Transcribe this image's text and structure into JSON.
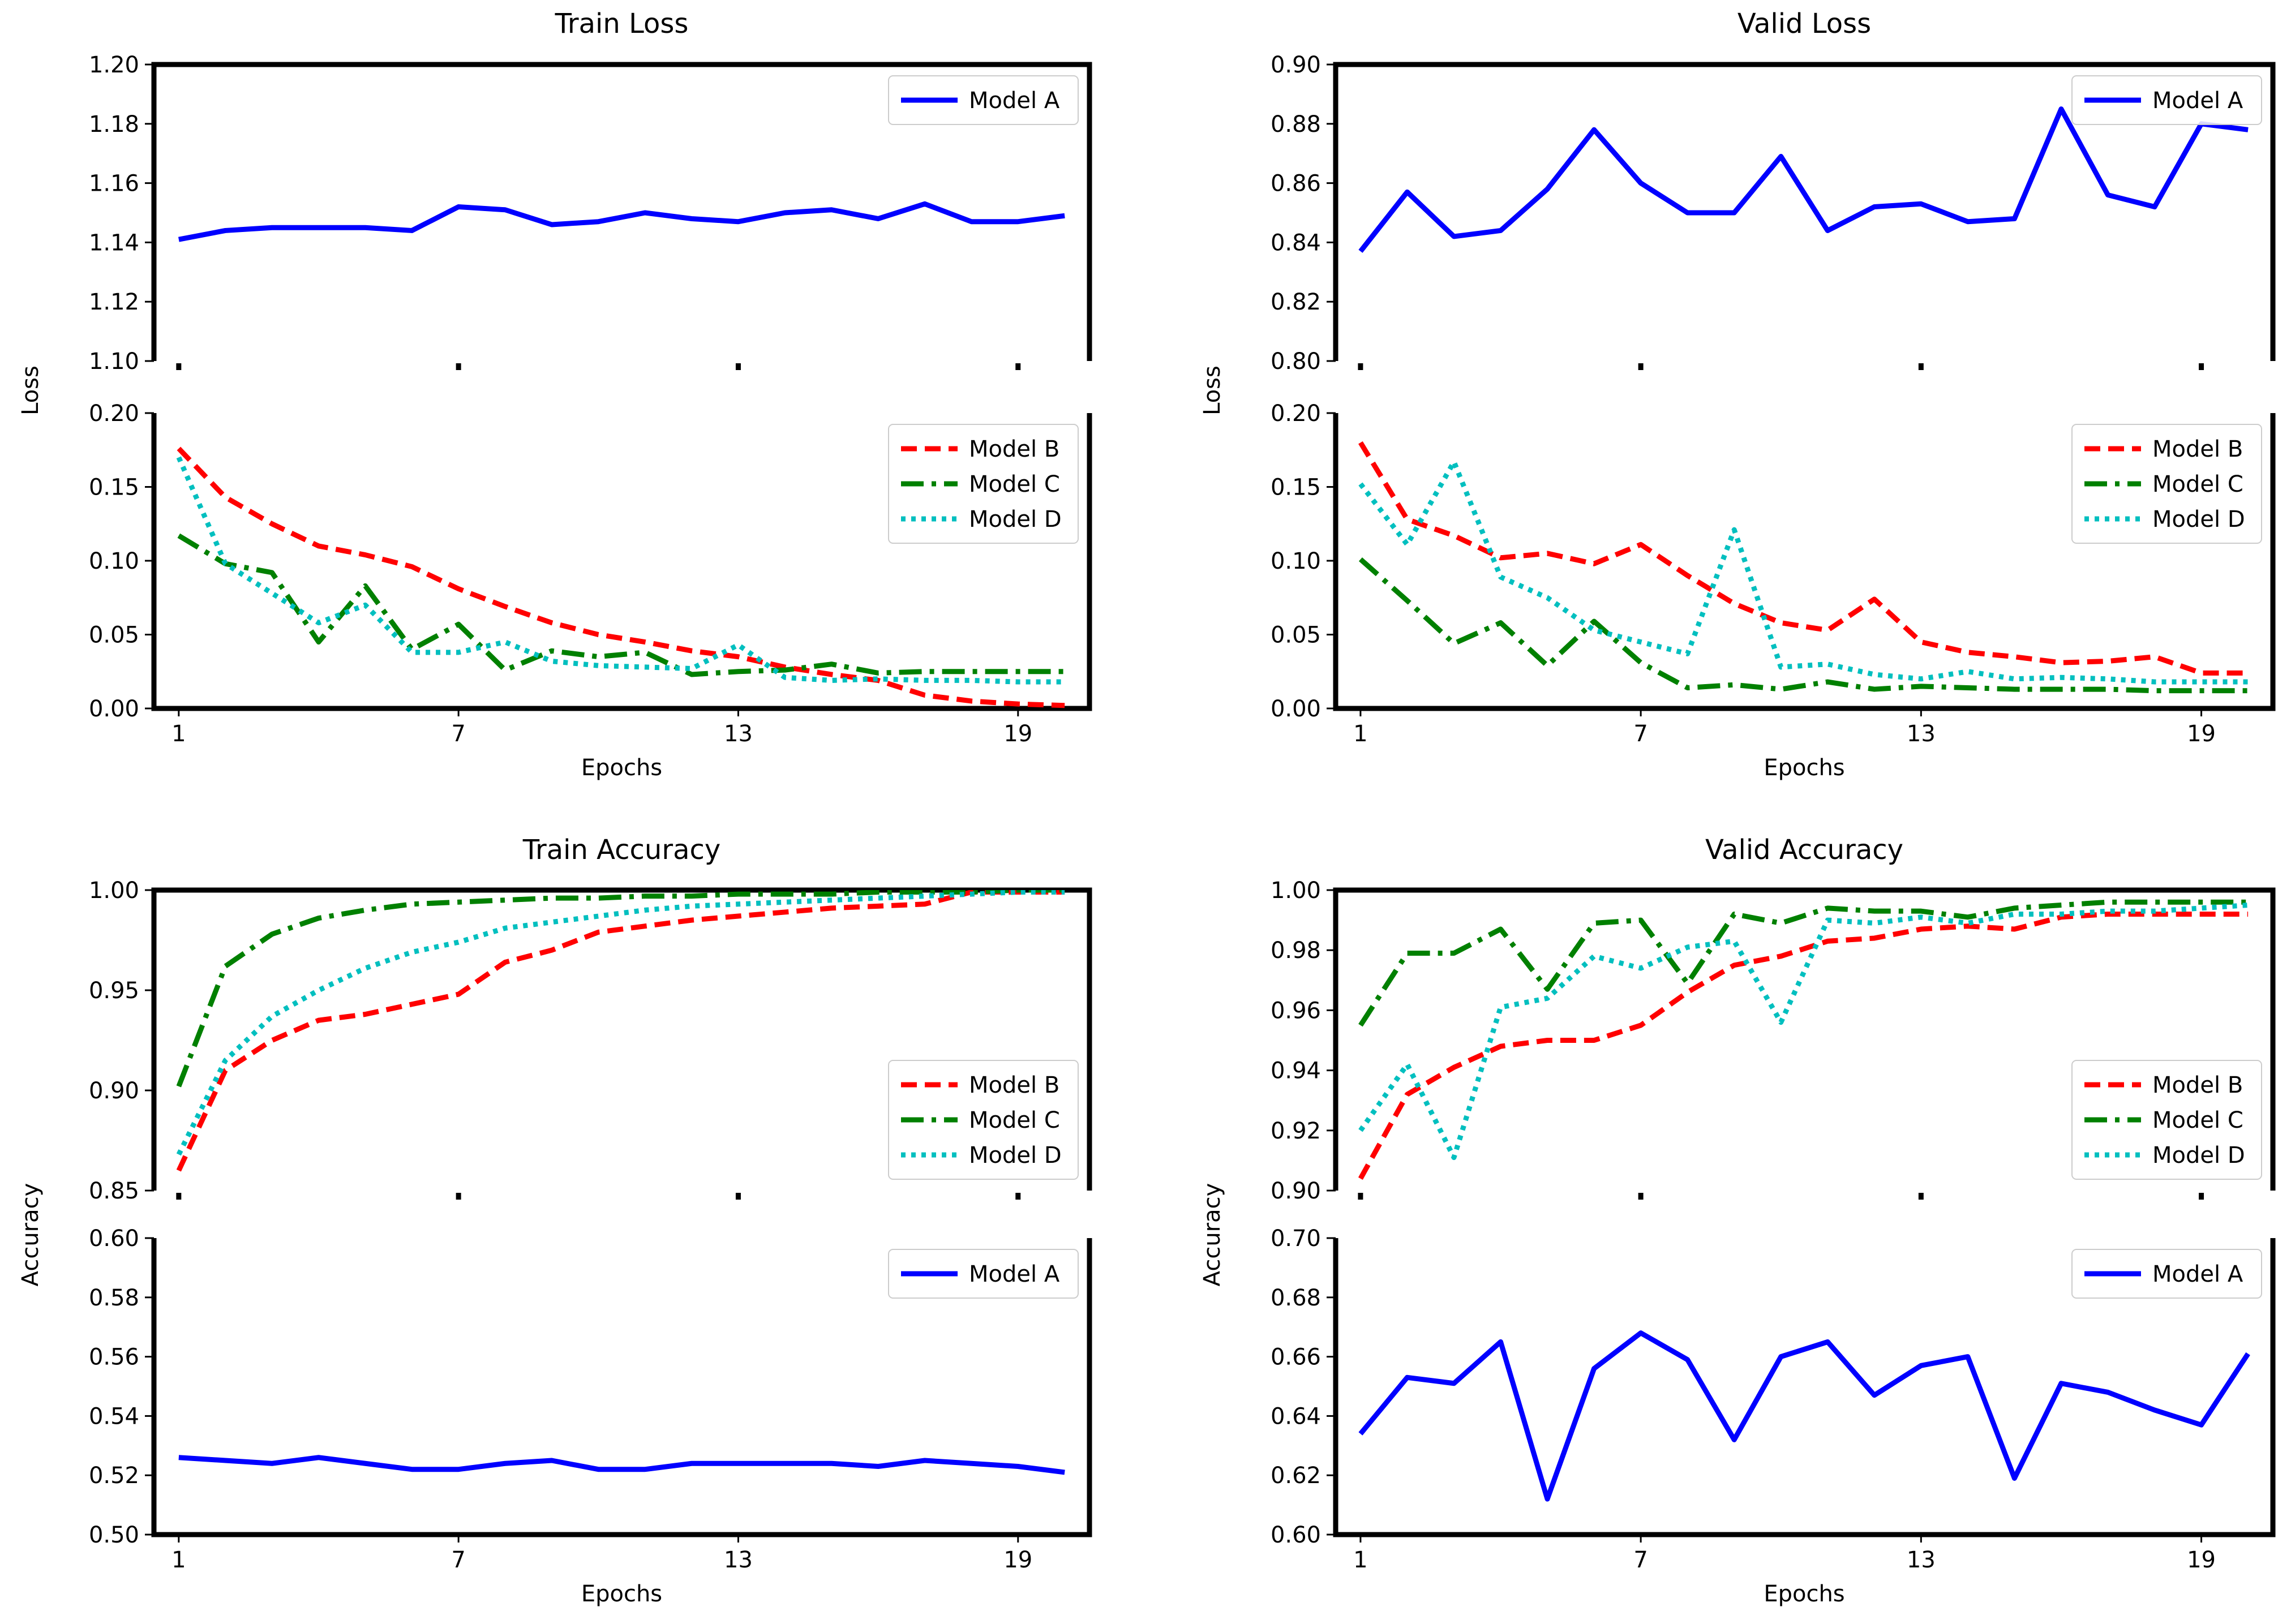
{
  "colors": {
    "Model A": "#0000ff",
    "Model B": "#ff0000",
    "Model C": "#008000",
    "Model D": "#00bfbf"
  },
  "chart_data": [
    {
      "type": "line",
      "title": "Train Loss",
      "xlabel": "Epochs",
      "ylabel": "Loss",
      "x": [
        1,
        2,
        3,
        4,
        5,
        6,
        7,
        8,
        9,
        10,
        11,
        12,
        13,
        14,
        15,
        16,
        17,
        18,
        19,
        20
      ],
      "xticks": [
        "1",
        "7",
        "13",
        "19"
      ],
      "top": {
        "ylim": [
          1.1,
          1.2
        ],
        "yticks": [
          "1.10",
          "1.12",
          "1.14",
          "1.16",
          "1.18",
          "1.20"
        ],
        "legend": "upper-right",
        "series": [
          {
            "name": "Model A",
            "values": [
              1.141,
              1.144,
              1.145,
              1.145,
              1.145,
              1.144,
              1.152,
              1.151,
              1.146,
              1.147,
              1.15,
              1.148,
              1.147,
              1.15,
              1.151,
              1.148,
              1.153,
              1.147,
              1.147,
              1.149
            ]
          }
        ]
      },
      "bottom": {
        "ylim": [
          0.0,
          0.2
        ],
        "yticks": [
          "0.00",
          "0.05",
          "0.10",
          "0.15",
          "0.20"
        ],
        "legend": "upper-right",
        "series": [
          {
            "name": "Model B",
            "values": [
              0.176,
              0.143,
              0.125,
              0.11,
              0.104,
              0.096,
              0.081,
              0.069,
              0.058,
              0.05,
              0.045,
              0.039,
              0.035,
              0.028,
              0.023,
              0.019,
              0.009,
              0.005,
              0.003,
              0.002
            ]
          },
          {
            "name": "Model C",
            "values": [
              0.117,
              0.098,
              0.092,
              0.045,
              0.083,
              0.04,
              0.057,
              0.026,
              0.039,
              0.035,
              0.038,
              0.023,
              0.025,
              0.026,
              0.03,
              0.024,
              0.025,
              0.025,
              0.025,
              0.025
            ]
          },
          {
            "name": "Model D",
            "values": [
              0.17,
              0.098,
              0.078,
              0.058,
              0.07,
              0.038,
              0.038,
              0.045,
              0.032,
              0.029,
              0.028,
              0.027,
              0.043,
              0.021,
              0.019,
              0.02,
              0.019,
              0.019,
              0.018,
              0.018
            ]
          }
        ]
      }
    },
    {
      "type": "line",
      "title": "Valid Loss",
      "xlabel": "Epochs",
      "ylabel": "Loss",
      "x": [
        1,
        2,
        3,
        4,
        5,
        6,
        7,
        8,
        9,
        10,
        11,
        12,
        13,
        14,
        15,
        16,
        17,
        18,
        19,
        20
      ],
      "xticks": [
        "1",
        "7",
        "13",
        "19"
      ],
      "top": {
        "ylim": [
          0.8,
          0.9
        ],
        "yticks": [
          "0.80",
          "0.82",
          "0.84",
          "0.86",
          "0.88",
          "0.90"
        ],
        "legend": "upper-right",
        "series": [
          {
            "name": "Model A",
            "values": [
              0.837,
              0.857,
              0.842,
              0.844,
              0.858,
              0.878,
              0.86,
              0.85,
              0.85,
              0.869,
              0.844,
              0.852,
              0.853,
              0.847,
              0.848,
              0.885,
              0.856,
              0.852,
              0.88,
              0.878
            ]
          }
        ]
      },
      "bottom": {
        "ylim": [
          0.0,
          0.2
        ],
        "yticks": [
          "0.00",
          "0.05",
          "0.10",
          "0.15",
          "0.20"
        ],
        "legend": "upper-right",
        "series": [
          {
            "name": "Model B",
            "values": [
              0.18,
              0.128,
              0.117,
              0.102,
              0.105,
              0.098,
              0.111,
              0.09,
              0.071,
              0.058,
              0.053,
              0.074,
              0.045,
              0.038,
              0.035,
              0.031,
              0.032,
              0.035,
              0.024,
              0.024
            ]
          },
          {
            "name": "Model C",
            "values": [
              0.101,
              0.073,
              0.044,
              0.058,
              0.029,
              0.059,
              0.031,
              0.014,
              0.016,
              0.013,
              0.018,
              0.013,
              0.015,
              0.014,
              0.013,
              0.013,
              0.013,
              0.012,
              0.012,
              0.012
            ]
          },
          {
            "name": "Model D",
            "values": [
              0.152,
              0.111,
              0.167,
              0.089,
              0.075,
              0.053,
              0.045,
              0.037,
              0.121,
              0.028,
              0.03,
              0.023,
              0.02,
              0.025,
              0.02,
              0.021,
              0.02,
              0.018,
              0.018,
              0.018
            ]
          }
        ]
      }
    },
    {
      "type": "line",
      "title": "Train Accuracy",
      "xlabel": "Epochs",
      "ylabel": "Accuracy",
      "x": [
        1,
        2,
        3,
        4,
        5,
        6,
        7,
        8,
        9,
        10,
        11,
        12,
        13,
        14,
        15,
        16,
        17,
        18,
        19,
        20
      ],
      "xticks": [
        "1",
        "7",
        "13",
        "19"
      ],
      "top": {
        "ylim": [
          0.85,
          1.0
        ],
        "yticks": [
          "0.85",
          "0.90",
          "0.95",
          "1.00"
        ],
        "legend": "lower-right",
        "series": [
          {
            "name": "Model B",
            "values": [
              0.86,
              0.91,
              0.925,
              0.935,
              0.938,
              0.943,
              0.948,
              0.964,
              0.97,
              0.979,
              0.982,
              0.985,
              0.987,
              0.989,
              0.991,
              0.992,
              0.993,
              0.999,
              0.999,
              0.999
            ]
          },
          {
            "name": "Model C",
            "values": [
              0.902,
              0.962,
              0.978,
              0.986,
              0.99,
              0.993,
              0.994,
              0.995,
              0.996,
              0.996,
              0.997,
              0.997,
              0.998,
              0.998,
              0.998,
              0.999,
              0.999,
              0.999,
              1.0,
              1.0
            ]
          },
          {
            "name": "Model D",
            "values": [
              0.868,
              0.915,
              0.937,
              0.95,
              0.961,
              0.969,
              0.974,
              0.981,
              0.984,
              0.987,
              0.99,
              0.992,
              0.993,
              0.994,
              0.995,
              0.996,
              0.997,
              0.998,
              0.999,
              0.999
            ]
          }
        ]
      },
      "bottom": {
        "ylim": [
          0.5,
          0.6
        ],
        "yticks": [
          "0.50",
          "0.52",
          "0.54",
          "0.56",
          "0.58",
          "0.60"
        ],
        "legend": "upper-right",
        "series": [
          {
            "name": "Model A",
            "values": [
              0.526,
              0.525,
              0.524,
              0.526,
              0.524,
              0.522,
              0.522,
              0.524,
              0.525,
              0.522,
              0.522,
              0.524,
              0.524,
              0.524,
              0.524,
              0.523,
              0.525,
              0.524,
              0.523,
              0.521
            ]
          }
        ]
      }
    },
    {
      "type": "line",
      "title": "Valid Accuracy",
      "xlabel": "Epochs",
      "ylabel": "Accuracy",
      "x": [
        1,
        2,
        3,
        4,
        5,
        6,
        7,
        8,
        9,
        10,
        11,
        12,
        13,
        14,
        15,
        16,
        17,
        18,
        19,
        20
      ],
      "xticks": [
        "1",
        "7",
        "13",
        "19"
      ],
      "top": {
        "ylim": [
          0.9,
          1.0
        ],
        "yticks": [
          "0.90",
          "0.92",
          "0.94",
          "0.96",
          "0.98",
          "1.00"
        ],
        "legend": "lower-right",
        "series": [
          {
            "name": "Model B",
            "values": [
              0.904,
              0.932,
              0.941,
              0.948,
              0.95,
              0.95,
              0.955,
              0.966,
              0.975,
              0.978,
              0.983,
              0.984,
              0.987,
              0.988,
              0.987,
              0.991,
              0.992,
              0.992,
              0.992,
              0.992
            ]
          },
          {
            "name": "Model C",
            "values": [
              0.955,
              0.979,
              0.979,
              0.987,
              0.967,
              0.989,
              0.99,
              0.969,
              0.992,
              0.989,
              0.994,
              0.993,
              0.993,
              0.991,
              0.994,
              0.995,
              0.996,
              0.996,
              0.996,
              0.996
            ]
          },
          {
            "name": "Model D",
            "values": [
              0.92,
              0.942,
              0.911,
              0.961,
              0.964,
              0.978,
              0.974,
              0.981,
              0.983,
              0.956,
              0.99,
              0.989,
              0.991,
              0.989,
              0.992,
              0.992,
              0.993,
              0.993,
              0.994,
              0.995
            ]
          }
        ]
      },
      "bottom": {
        "ylim": [
          0.6,
          0.7
        ],
        "yticks": [
          "0.60",
          "0.62",
          "0.64",
          "0.66",
          "0.68",
          "0.70"
        ],
        "legend": "upper-right",
        "series": [
          {
            "name": "Model A",
            "values": [
              0.634,
              0.653,
              0.651,
              0.665,
              0.612,
              0.656,
              0.668,
              0.659,
              0.632,
              0.66,
              0.665,
              0.647,
              0.657,
              0.66,
              0.619,
              0.651,
              0.648,
              0.642,
              0.637,
              0.661
            ]
          }
        ]
      }
    }
  ]
}
